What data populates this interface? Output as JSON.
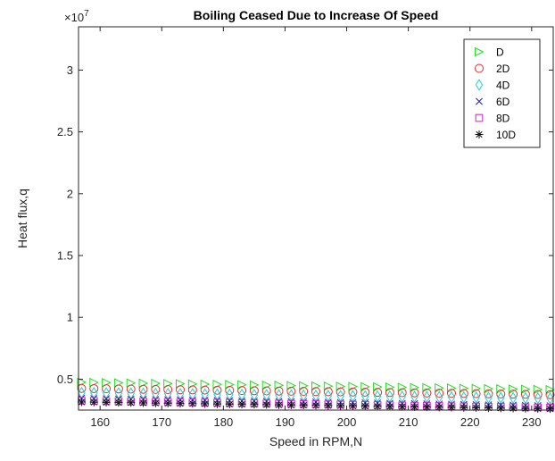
{
  "chart_data": {
    "type": "scatter",
    "title": "Boiling Ceased Due to Increase Of Speed",
    "xlabel": "Speed in RPM,N",
    "ylabel": "Heat flux,q",
    "exponent_base": "×10",
    "exponent_power": "7",
    "xlim": [
      156.5,
      233.5
    ],
    "ylim": [
      2500000,
      33500000
    ],
    "xticks": [
      160,
      170,
      180,
      190,
      200,
      210,
      220,
      230
    ],
    "xtick_labels": [
      "160",
      "170",
      "180",
      "190",
      "200",
      "210",
      "220",
      "230"
    ],
    "yticks": [
      5000000,
      10000000,
      15000000,
      20000000,
      25000000,
      30000000
    ],
    "ytick_labels": [
      "0.5",
      "1",
      "1.5",
      "2",
      "2.5",
      "3"
    ],
    "x_range": [
      157,
      233
    ],
    "x_step": 2,
    "legend_position": "top-right",
    "grid": false,
    "series": [
      {
        "name": "D",
        "marker": "triangle-right",
        "color": "#22dd22",
        "y_start": 4750000,
        "y_end": 4150000
      },
      {
        "name": "2D",
        "marker": "circle",
        "color": "#e03030",
        "y_start": 4250000,
        "y_end": 3750000
      },
      {
        "name": "4D",
        "marker": "diamond",
        "color": "#22cccc",
        "y_start": 3900000,
        "y_end": 3450000
      },
      {
        "name": "6D",
        "marker": "x",
        "color": "#2222aa",
        "y_start": 3450000,
        "y_end": 2850000
      },
      {
        "name": "8D",
        "marker": "square",
        "color": "#cc22cc",
        "y_start": 3250000,
        "y_end": 2700000
      },
      {
        "name": "10D",
        "marker": "asterisk",
        "color": "#111111",
        "y_start": 3150000,
        "y_end": 2600000
      }
    ]
  }
}
